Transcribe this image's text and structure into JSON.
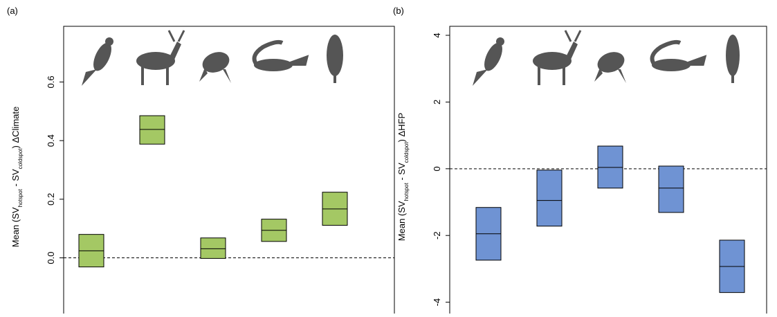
{
  "chart_data": [
    {
      "type": "crossbar",
      "panel_label": "(a)",
      "ylabel": [
        "Mean (SV",
        "hotspot",
        " - SV",
        "coldspot",
        ") ΔClimate"
      ],
      "categories": [
        null,
        null,
        null,
        null,
        null
      ],
      "values": [
        0.024,
        0.438,
        0.031,
        0.094,
        0.167
      ],
      "lower": [
        -0.031,
        0.388,
        -0.002,
        0.056,
        0.111
      ],
      "upper": [
        0.08,
        0.485,
        0.068,
        0.132,
        0.224
      ],
      "color": "#a4c864",
      "ylim": [
        -0.19,
        0.79
      ],
      "yticks": [
        {
          "value": 0,
          "label": "0.0"
        },
        0.2,
        0.4,
        0.6
      ],
      "hline": 0
    },
    {
      "type": "crossbar",
      "panel_label": "(b)",
      "ylabel": [
        "Mean (SV",
        "hotspot",
        " - SV",
        "coldspot",
        ") ΔHFP"
      ],
      "categories": [
        null,
        null,
        null,
        null,
        null
      ],
      "values": [
        -1.95,
        -0.95,
        0.04,
        -0.58,
        -2.93
      ],
      "lower": [
        -2.74,
        -1.72,
        -0.58,
        -1.31,
        -3.71
      ],
      "upper": [
        -1.16,
        -0.04,
        0.68,
        0.08,
        -2.14
      ],
      "color": "#6f93d3",
      "ylim": [
        -4.34,
        4.27
      ],
      "yticks": [
        -4,
        -2,
        0,
        2,
        4
      ],
      "hline": 0
    }
  ]
}
